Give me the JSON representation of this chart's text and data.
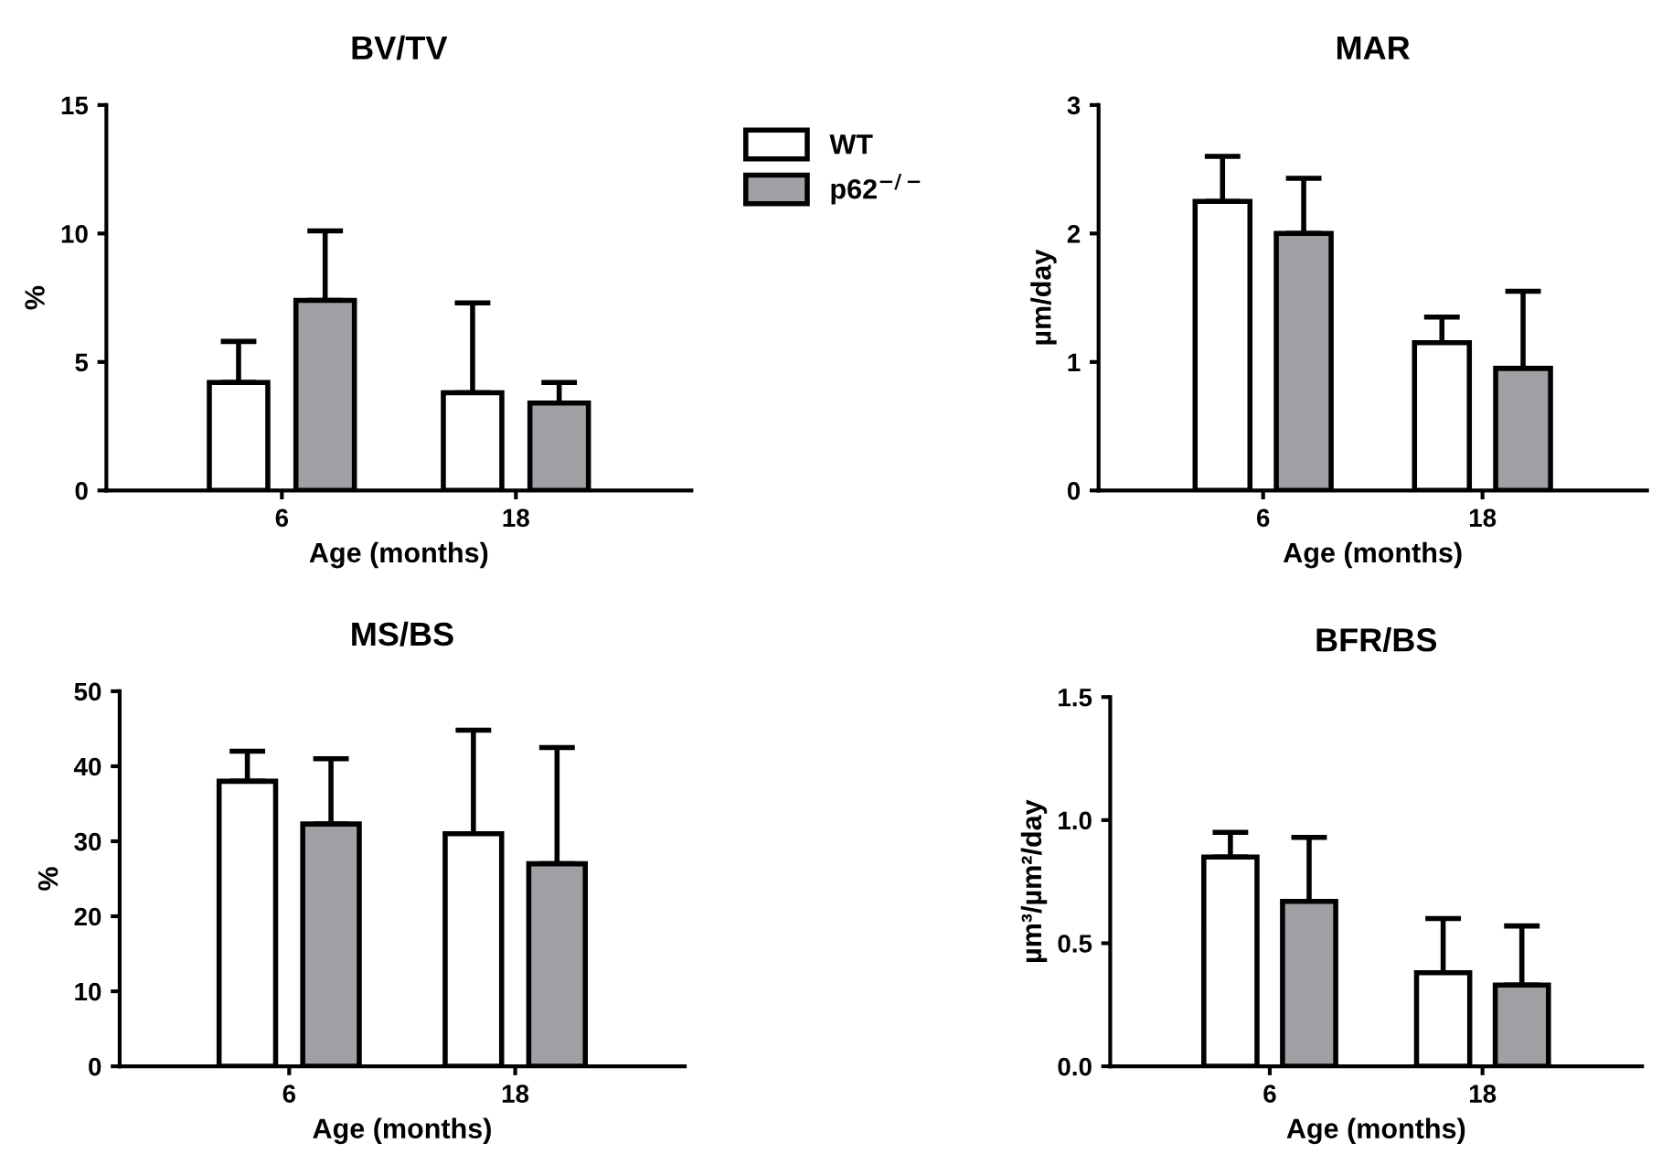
{
  "chart_data": [
    {
      "type": "bar",
      "title": "BV/TV",
      "xlabel": "Age (months)",
      "ylabel": "%",
      "categories": [
        "6",
        "18"
      ],
      "ylim": [
        0,
        15
      ],
      "yticks": [
        0,
        5,
        10,
        15
      ],
      "legend": "top right",
      "series": [
        {
          "name": "WT",
          "color": "#ffffff",
          "values": [
            4.2,
            3.8
          ],
          "errors": [
            [
              4.2,
              5.8
            ],
            [
              3.8,
              7.3
            ]
          ]
        },
        {
          "name": "p62$^{−/−}$",
          "color": "#a0a0a4",
          "values": [
            7.4,
            3.4
          ],
          "errors": [
            [
              7.4,
              10.1
            ],
            [
              3.4,
              4.2
            ]
          ]
        }
      ]
    },
    {
      "type": "bar",
      "title": "MAR",
      "xlabel": "Age (months)",
      "ylabel": "µm/day",
      "categories": [
        "6",
        "18"
      ],
      "ylim": [
        0,
        3
      ],
      "yticks": [
        0,
        1,
        2,
        3
      ],
      "series": [
        {
          "color": "#ffffff",
          "values": [
            2.25,
            1.15
          ],
          "errors": [
            [
              2.25,
              2.6
            ],
            [
              1.15,
              1.35
            ]
          ]
        },
        {
          "color": "#a0a0a4",
          "values": [
            2.0,
            0.95
          ],
          "errors": [
            [
              2.0,
              2.43
            ],
            [
              0.95,
              1.55
            ]
          ]
        }
      ]
    },
    {
      "type": "bar",
      "title": "MS/BS",
      "xlabel": "Age (months)",
      "ylabel": "%",
      "categories": [
        "6",
        "18"
      ],
      "ylim": [
        0,
        50
      ],
      "yticks": [
        0,
        10,
        20,
        30,
        40,
        50
      ],
      "series": [
        {
          "color": "#ffffff",
          "values": [
            38,
            31
          ],
          "errors": [
            [
              38,
              42
            ],
            [
              31,
              44.8
            ]
          ]
        },
        {
          "color": "#a0a0a4",
          "values": [
            32.3,
            27
          ],
          "errors": [
            [
              32.3,
              41
            ],
            [
              27,
              42.5
            ]
          ]
        }
      ]
    },
    {
      "type": "bar",
      "title": "BFR/BS",
      "xlabel": "Age (months)",
      "ylabel": "µm³/µm²/day",
      "categories": [
        "6",
        "18"
      ],
      "ylim": [
        0,
        1.5
      ],
      "yticks": [
        {
          "value": 0,
          "label": "0.0"
        },
        0.5,
        {
          "value": 1,
          "label": "1.0"
        },
        1.5
      ],
      "series": [
        {
          "color": "#ffffff",
          "values": [
            0.85,
            0.38
          ],
          "errors": [
            [
              0.85,
              0.95
            ],
            [
              0.38,
              0.6
            ]
          ]
        },
        {
          "color": "#a0a0a4",
          "values": [
            0.67,
            0.33
          ],
          "errors": [
            [
              0.67,
              0.93
            ],
            [
              0.33,
              0.57
            ]
          ]
        }
      ]
    }
  ]
}
